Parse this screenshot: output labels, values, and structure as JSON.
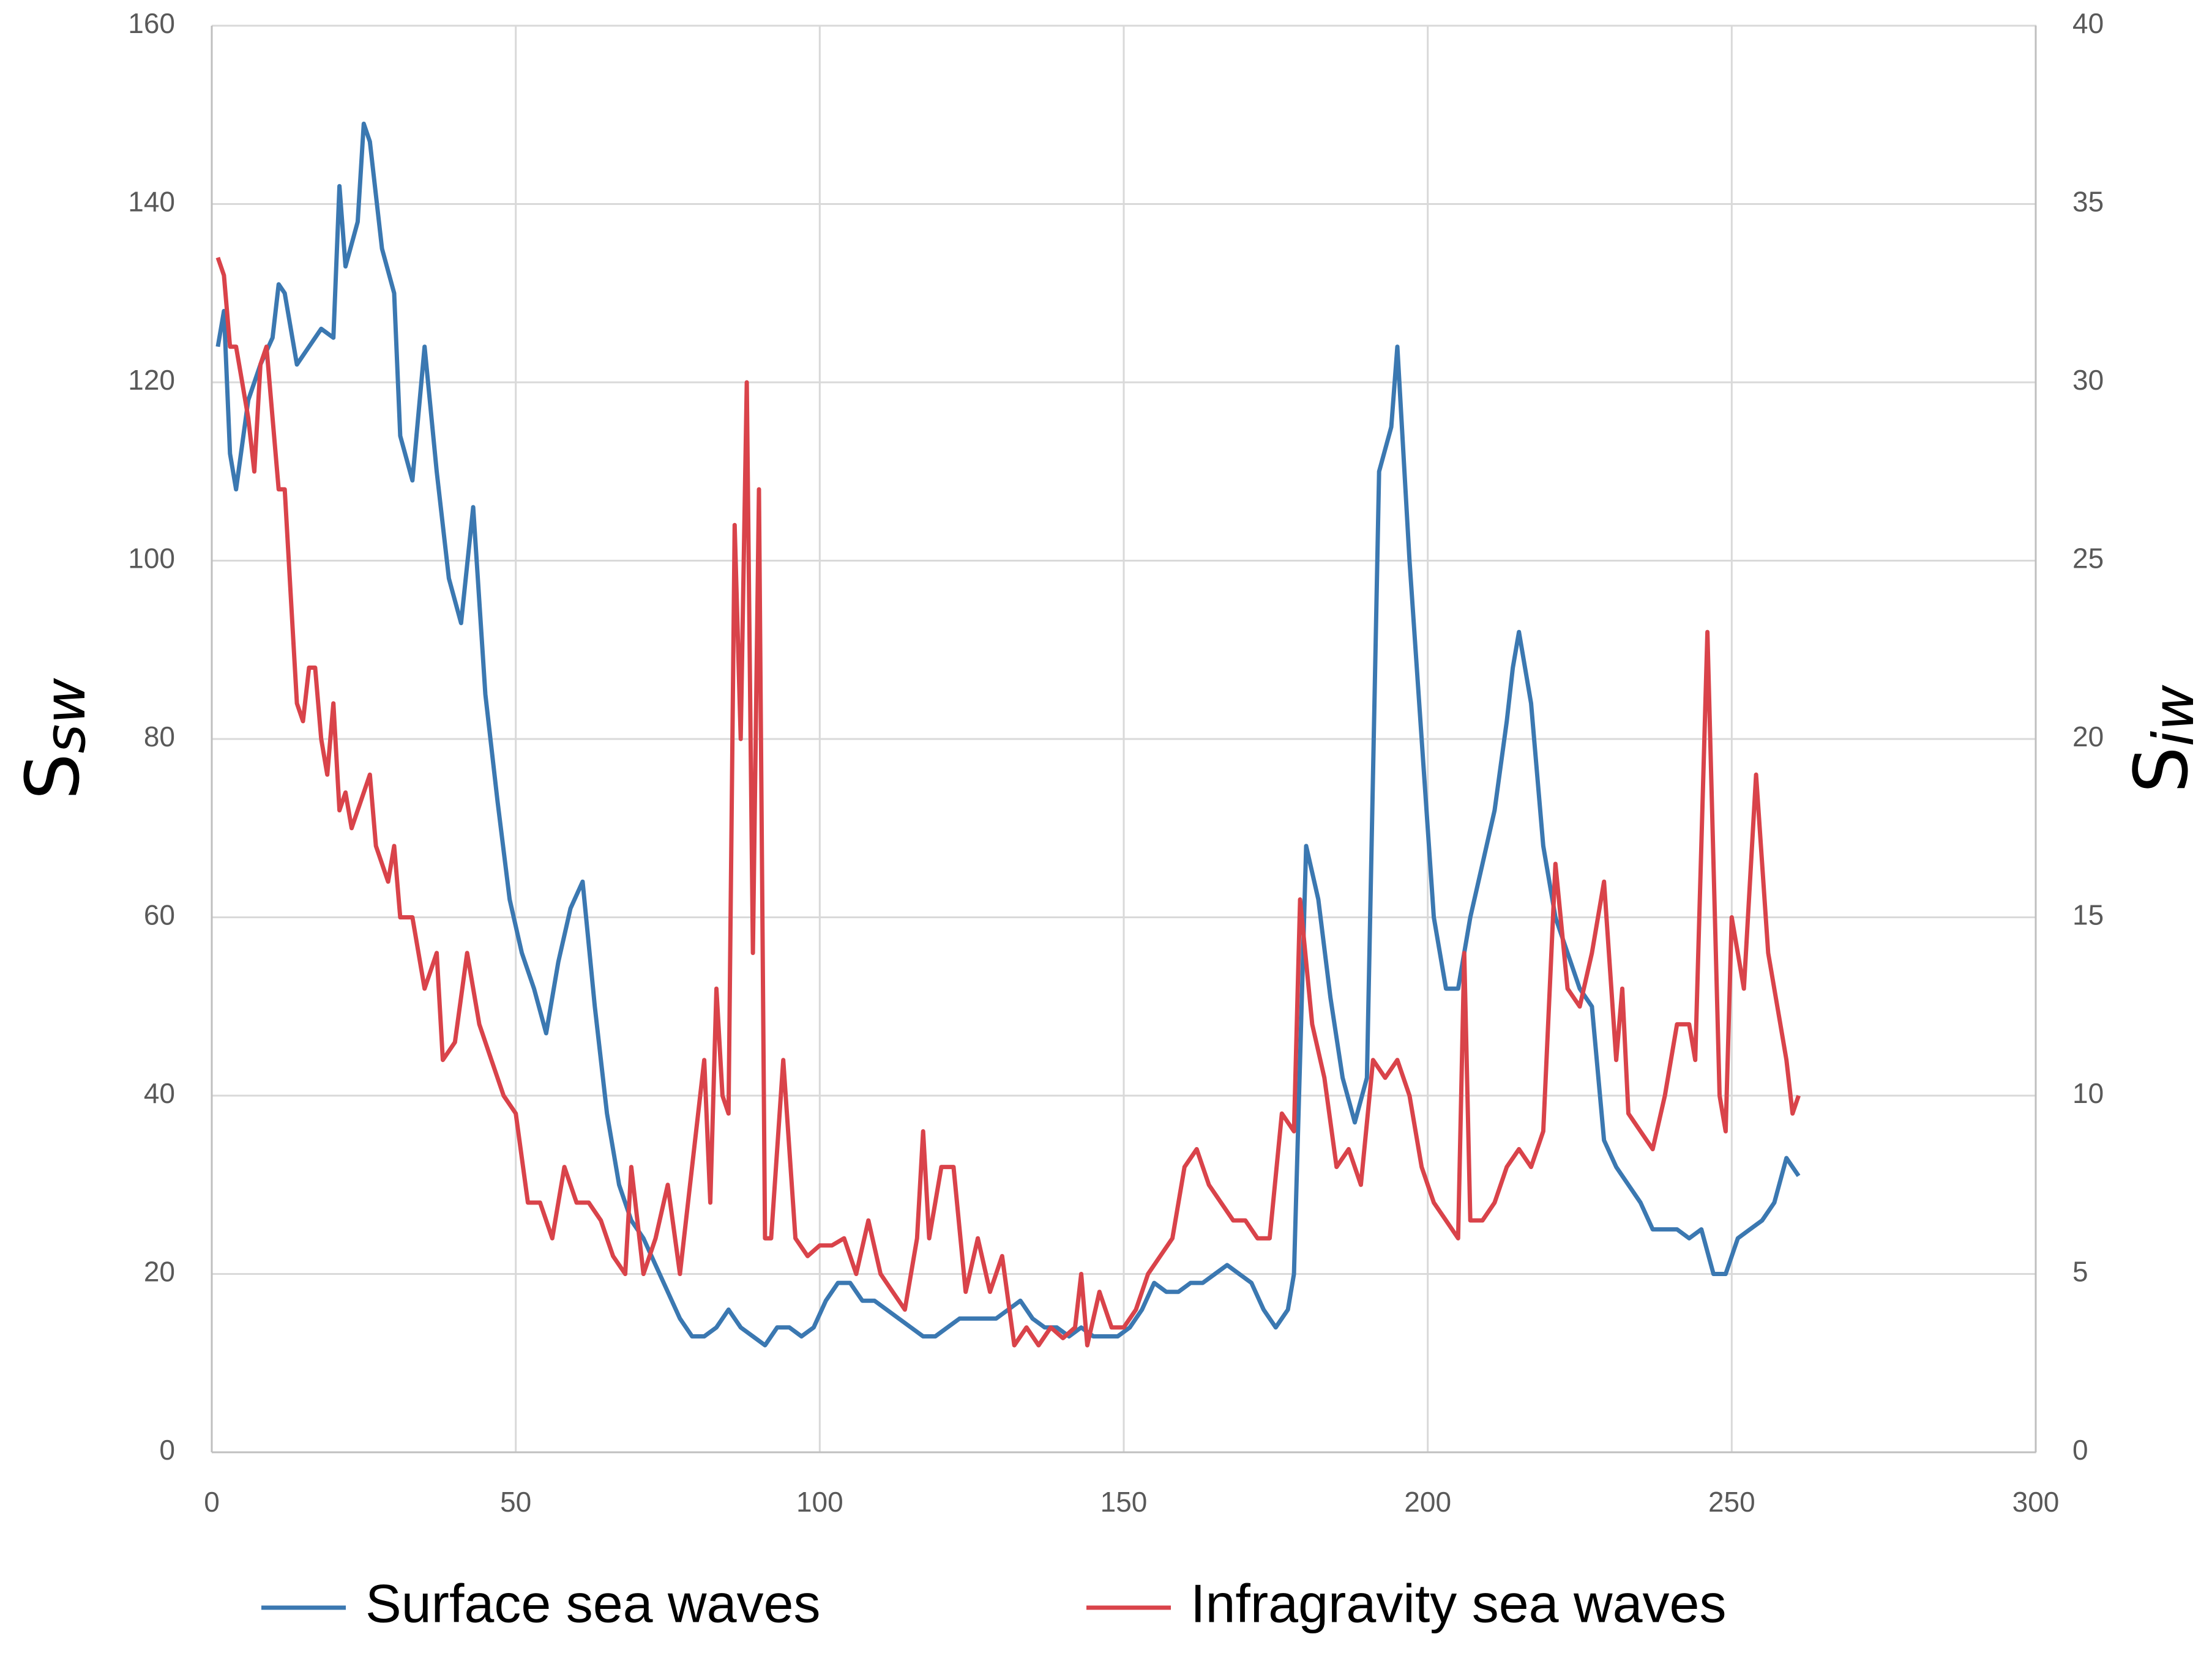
{
  "chart_data": {
    "type": "line",
    "ylabel": [
      "S",
      "sw"
    ],
    "y2label": [
      "S",
      "iw"
    ],
    "xlim": [
      0,
      300
    ],
    "xticks": [
      0,
      50,
      100,
      150,
      200,
      250,
      300
    ],
    "ylim": [
      0,
      160
    ],
    "yticks": [
      0,
      20,
      40,
      60,
      80,
      100,
      120,
      140,
      160
    ],
    "y2lim": [
      0,
      40
    ],
    "y2ticks": [
      0,
      5,
      10,
      15,
      20,
      25,
      30,
      35,
      40
    ],
    "grid": true,
    "legend": "bottom",
    "series": [
      {
        "name": "Surface sea waves",
        "color": "#3b78b1",
        "axis": "y",
        "x": [
          1,
          2,
          3,
          4,
          6,
          8,
          10,
          11,
          12,
          14,
          16,
          18,
          20,
          21,
          22,
          24,
          25,
          26,
          28,
          30,
          31,
          33,
          35,
          37,
          39,
          41,
          43,
          45,
          47,
          49,
          51,
          53,
          55,
          57,
          59,
          61,
          63,
          65,
          67,
          69,
          71,
          73,
          75,
          77,
          79,
          81,
          83,
          85,
          87,
          89,
          91,
          93,
          95,
          97,
          99,
          101,
          103,
          105,
          107,
          109,
          111,
          113,
          115,
          117,
          119,
          121,
          123,
          125,
          127,
          129,
          131,
          133,
          135,
          137,
          139,
          141,
          143,
          145,
          147,
          149,
          151,
          153,
          155,
          157,
          159,
          161,
          163,
          165,
          167,
          169,
          171,
          173,
          175,
          177,
          178,
          180,
          182,
          184,
          186,
          188,
          190,
          192,
          194,
          195,
          197,
          199,
          201,
          203,
          205,
          207,
          209,
          211,
          213,
          214,
          215,
          217,
          219,
          221,
          223,
          225,
          227,
          229,
          231,
          233,
          235,
          237,
          239,
          241,
          243,
          245,
          247,
          249,
          251,
          253,
          255,
          257,
          259,
          261
        ],
        "values": [
          124,
          128,
          112,
          108,
          118,
          122,
          125,
          131,
          130,
          122,
          124,
          126,
          125,
          142,
          133,
          138,
          149,
          147,
          135,
          130,
          114,
          109,
          124,
          110,
          98,
          93,
          106,
          85,
          73,
          62,
          56,
          52,
          47,
          55,
          61,
          64,
          50,
          38,
          30,
          26,
          24,
          21,
          18,
          15,
          13,
          13,
          14,
          16,
          14,
          13,
          12,
          14,
          14,
          13,
          14,
          17,
          19,
          19,
          17,
          17,
          16,
          15,
          14,
          13,
          13,
          14,
          15,
          15,
          15,
          15,
          16,
          17,
          15,
          14,
          14,
          13,
          14,
          13,
          13,
          13,
          14,
          16,
          19,
          18,
          18,
          19,
          19,
          20,
          21,
          20,
          19,
          16,
          14,
          16,
          20,
          68,
          62,
          51,
          42,
          37,
          42,
          110,
          115,
          124,
          100,
          80,
          60,
          52,
          52,
          60,
          66,
          72,
          82,
          88,
          92,
          84,
          68,
          60,
          56,
          52,
          50,
          35,
          32,
          30,
          28,
          25,
          25,
          25,
          24,
          25,
          20,
          20,
          24,
          25,
          26,
          28,
          33,
          31
        ]
      },
      {
        "name": "Infragravity sea waves",
        "color": "#d9434a",
        "axis": "y2",
        "x": [
          1,
          2,
          3,
          4,
          5,
          6,
          7,
          8,
          9,
          10,
          11,
          12,
          13,
          14,
          15,
          16,
          17,
          18,
          19,
          20,
          21,
          22,
          23,
          24,
          26,
          27,
          29,
          30,
          31,
          33,
          35,
          37,
          38,
          40,
          42,
          44,
          46,
          48,
          50,
          52,
          54,
          56,
          58,
          60,
          62,
          64,
          66,
          68,
          69,
          71,
          73,
          75,
          77,
          79,
          81,
          82,
          83,
          84,
          85,
          86,
          87,
          88,
          89,
          90,
          91,
          92,
          94,
          96,
          98,
          100,
          102,
          104,
          106,
          108,
          110,
          112,
          114,
          116,
          117,
          118,
          120,
          122,
          124,
          126,
          128,
          130,
          132,
          134,
          136,
          138,
          140,
          142,
          143,
          144,
          146,
          148,
          150,
          152,
          154,
          156,
          158,
          160,
          162,
          164,
          166,
          168,
          170,
          172,
          174,
          176,
          178,
          179,
          181,
          183,
          185,
          187,
          189,
          191,
          193,
          195,
          197,
          199,
          201,
          203,
          205,
          206,
          207,
          209,
          211,
          213,
          215,
          217,
          219,
          221,
          223,
          225,
          227,
          229,
          231,
          232,
          233,
          235,
          237,
          239,
          241,
          243,
          244,
          246,
          248,
          249,
          250,
          252,
          254,
          256,
          258,
          259,
          260,
          261
        ],
        "values": [
          33.5,
          33,
          31,
          31,
          30,
          29,
          27.5,
          30.5,
          31,
          29,
          27,
          27,
          24,
          21,
          20.5,
          22,
          22,
          20,
          19,
          21,
          18,
          18.5,
          17.5,
          18,
          19,
          17,
          16,
          17,
          15,
          15,
          13,
          14,
          11,
          11.5,
          14,
          12,
          11,
          10,
          9.5,
          7,
          7,
          6,
          8,
          7,
          7,
          6.5,
          5.5,
          5,
          8,
          5,
          6,
          7.5,
          5,
          8,
          11,
          7,
          13,
          10,
          9.5,
          26,
          20,
          30,
          14,
          27,
          6,
          6,
          11,
          6,
          5.5,
          5.8,
          5.8,
          6,
          5,
          6.5,
          5,
          4.5,
          4,
          6,
          9,
          6,
          8,
          8,
          4.5,
          6,
          4.5,
          5.5,
          3,
          3.5,
          3,
          3.5,
          3.2,
          3.5,
          5,
          3,
          4.5,
          3.5,
          3.5,
          4,
          5,
          5.5,
          6,
          8,
          8.5,
          7.5,
          7,
          6.5,
          6.5,
          6,
          6,
          9.5,
          9,
          15.5,
          12,
          10.5,
          8,
          8.5,
          7.5,
          11,
          10.5,
          11,
          10,
          8,
          7,
          6.5,
          6,
          14,
          6.5,
          6.5,
          7,
          8,
          8.5,
          8,
          9,
          16.5,
          13,
          12.5,
          14,
          16,
          11,
          13,
          9.5,
          9,
          8.5,
          10,
          12,
          12,
          11,
          23,
          10,
          9,
          15,
          13,
          19,
          14,
          12,
          11,
          9.5,
          10
        ]
      }
    ]
  }
}
